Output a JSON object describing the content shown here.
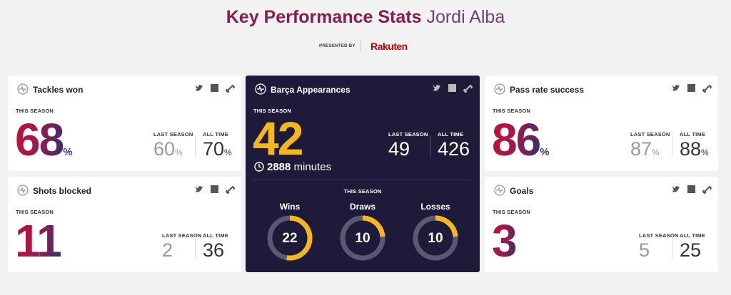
{
  "header": {
    "title_bold": "Key Performance Stats",
    "title_name": "Jordi Alba",
    "presented_by": "PRESENTED BY",
    "sponsor": "Rakuten"
  },
  "cards": [
    {
      "title": "Tackles won",
      "season_label": "THIS SEASON",
      "value": 68,
      "unit": "%",
      "last_label": "LAST SEASON",
      "last_value": 60,
      "last_unit": "%",
      "all_label": "ALL TIME",
      "all_value": 70,
      "all_unit": "%"
    },
    {
      "title": "Shots blocked",
      "season_label": "THIS SEASON",
      "value": 11,
      "last_label": "LAST SEASON",
      "last_value": 2,
      "all_label": "ALL TIME",
      "all_value": 36
    },
    {
      "title": "Pass rate success",
      "season_label": "THIS SEASON",
      "value": 86,
      "unit": "%",
      "last_label": "LAST SEASON",
      "last_value": 87,
      "last_unit": "%",
      "all_label": "ALL TIME",
      "all_value": 88,
      "all_unit": "%"
    },
    {
      "title": "Goals",
      "season_label": "THIS SEASON",
      "value": 3,
      "last_label": "LAST SEASON",
      "last_value": 5,
      "all_label": "ALL TIME",
      "all_value": 25
    }
  ],
  "feature": {
    "title": "Barça Appearances",
    "season_label": "THIS SEASON",
    "value": 42,
    "last_label": "LAST SEASON",
    "last_value": 49,
    "all_label": "ALL TIME",
    "all_value": 426,
    "minutes": 2888,
    "minutes_unit": "minutes",
    "results_label": "THIS SEASON",
    "results": [
      {
        "label": "Wins",
        "value": 22
      },
      {
        "label": "Draws",
        "value": 10
      },
      {
        "label": "Losses",
        "value": 10
      }
    ]
  }
}
